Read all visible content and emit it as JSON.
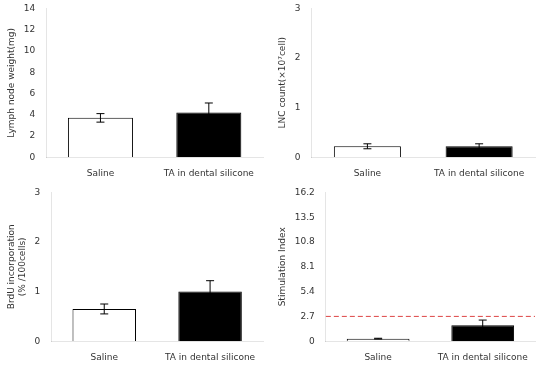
{
  "chart_data": [
    {
      "type": "bar",
      "categories": [
        "Saline",
        "TA in dental silicone"
      ],
      "values": [
        3.7,
        4.2
      ],
      "errors": [
        0.4,
        0.9
      ],
      "colors": [
        "white",
        "black"
      ],
      "y_label": "Lymph node weight(mg)",
      "ylim": [
        0,
        14
      ],
      "yticks": [
        0,
        2,
        4,
        6,
        8,
        10,
        12,
        14
      ],
      "grid": false
    },
    {
      "type": "bar",
      "categories": [
        "Saline",
        "TA in dental silicone"
      ],
      "values": [
        0.22,
        0.22
      ],
      "errors": [
        0.05,
        0.05
      ],
      "colors": [
        "white",
        "black"
      ],
      "y_label": "LNC count(×10⁷cell)",
      "ylim": [
        0,
        3
      ],
      "yticks": [
        0,
        1,
        2,
        3
      ],
      "grid": false
    },
    {
      "type": "bar",
      "categories": [
        "Saline",
        "TA in dental silicone"
      ],
      "values": [
        0.65,
        1.0
      ],
      "errors": [
        0.1,
        0.22
      ],
      "colors": [
        "white",
        "black"
      ],
      "y_label": "BrdU incorporation\n(% /100cells)",
      "ylim": [
        0,
        3
      ],
      "yticks": [
        0,
        1,
        2,
        3
      ],
      "grid": false
    },
    {
      "type": "bar",
      "categories": [
        "Saline",
        "TA in dental silicone"
      ],
      "values": [
        0.28,
        1.75
      ],
      "errors": [
        0.04,
        0.55
      ],
      "colors": [
        "white",
        "black"
      ],
      "y_label": "Stimulation Index",
      "ylim": [
        0,
        16.2
      ],
      "yticks": [
        0,
        2.7,
        5.4,
        8.1,
        10.8,
        13.5,
        16.2
      ],
      "grid": false,
      "reference_line": {
        "value": 2.7,
        "color": "#dd4444",
        "line_style": "dashed"
      }
    }
  ]
}
